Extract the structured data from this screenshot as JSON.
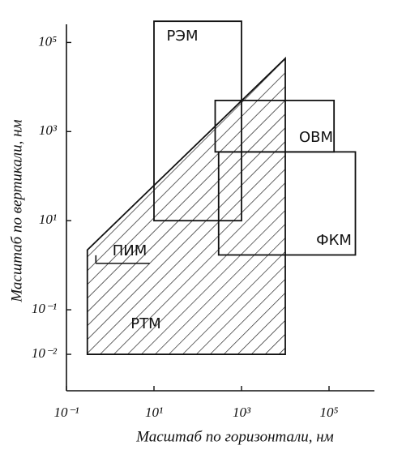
{
  "chart_data": {
    "type": "region",
    "xlabel": "Масштаб по горизонтали, нм",
    "ylabel": "Масштаб по вертикали, нм",
    "xscale": "log",
    "yscale": "log",
    "xlim": [
      0.1,
      1000000
    ],
    "ylim": [
      0.001,
      500000
    ],
    "xticks": [
      {
        "value": 0.1,
        "label": "10⁻¹"
      },
      {
        "value": 10,
        "label": "10¹"
      },
      {
        "value": 1000,
        "label": "10³"
      },
      {
        "value": 100000,
        "label": "10⁵"
      }
    ],
    "yticks": [
      {
        "value": 0.01,
        "label": "10⁻²"
      },
      {
        "value": 0.1,
        "label": "10⁻¹"
      },
      {
        "value": 10,
        "label": "10¹"
      },
      {
        "value": 1000,
        "label": "10³"
      },
      {
        "value": 100000,
        "label": "10⁵"
      }
    ],
    "grid": false,
    "series": [
      {
        "name": "РЭМ",
        "shape": "rect",
        "color": "#111111",
        "x": [
          10,
          1000
        ],
        "y": [
          10,
          300000
        ]
      },
      {
        "name": "ОВМ",
        "shape": "rect",
        "color": "#111111",
        "x": [
          250,
          130000
        ],
        "y": [
          350,
          5000
        ]
      },
      {
        "name": "ФКМ",
        "shape": "rect",
        "color": "#111111",
        "x": [
          300,
          400000
        ],
        "y": [
          1.7,
          350
        ]
      },
      {
        "name": "РТМ",
        "shape": "hatched",
        "color": "#111111",
        "x": [
          0.3,
          0.3,
          10000,
          10000
        ],
        "y": [
          2.2,
          0.01,
          0.01,
          44000
        ]
      },
      {
        "name": "ПИМ",
        "shape": "line",
        "color": "#111111",
        "x": [
          0.47,
          8
        ],
        "y": [
          1.1,
          1.1
        ]
      }
    ]
  }
}
